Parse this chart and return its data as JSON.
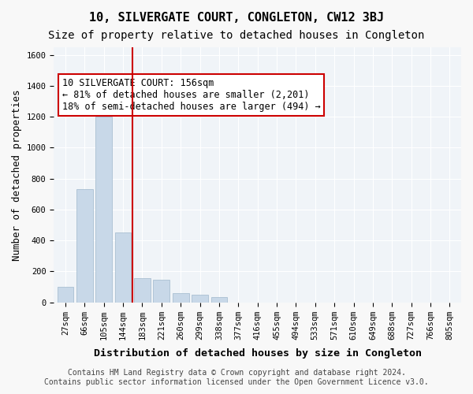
{
  "title": "10, SILVERGATE COURT, CONGLETON, CW12 3BJ",
  "subtitle": "Size of property relative to detached houses in Congleton",
  "xlabel": "Distribution of detached houses by size in Congleton",
  "ylabel": "Number of detached properties",
  "bar_color": "#c8d8e8",
  "bar_edge_color": "#a0b8cc",
  "categories": [
    "27sqm",
    "66sqm",
    "105sqm",
    "144sqm",
    "183sqm",
    "221sqm",
    "260sqm",
    "299sqm",
    "338sqm",
    "377sqm",
    "416sqm",
    "455sqm",
    "494sqm",
    "533sqm",
    "571sqm",
    "610sqm",
    "649sqm",
    "688sqm",
    "727sqm",
    "766sqm",
    "805sqm"
  ],
  "values": [
    100,
    730,
    1200,
    450,
    155,
    145,
    60,
    50,
    35,
    0,
    0,
    0,
    0,
    0,
    0,
    0,
    0,
    0,
    0,
    0,
    0
  ],
  "ylim": [
    0,
    1650
  ],
  "yticks": [
    0,
    200,
    400,
    600,
    800,
    1000,
    1200,
    1400,
    1600
  ],
  "property_line_x": 3.5,
  "property_line_color": "#cc0000",
  "annotation_text": "10 SILVERGATE COURT: 156sqm\n← 81% of detached houses are smaller (2,201)\n18% of semi-detached houses are larger (494) →",
  "annotation_box_color": "#ffffff",
  "annotation_box_edge_color": "#cc0000",
  "footer_line1": "Contains HM Land Registry data © Crown copyright and database right 2024.",
  "footer_line2": "Contains public sector information licensed under the Open Government Licence v3.0.",
  "background_color": "#f0f4f8",
  "grid_color": "#ffffff",
  "title_fontsize": 11,
  "subtitle_fontsize": 10,
  "axis_label_fontsize": 9,
  "tick_fontsize": 7.5,
  "annotation_fontsize": 8.5,
  "footer_fontsize": 7
}
